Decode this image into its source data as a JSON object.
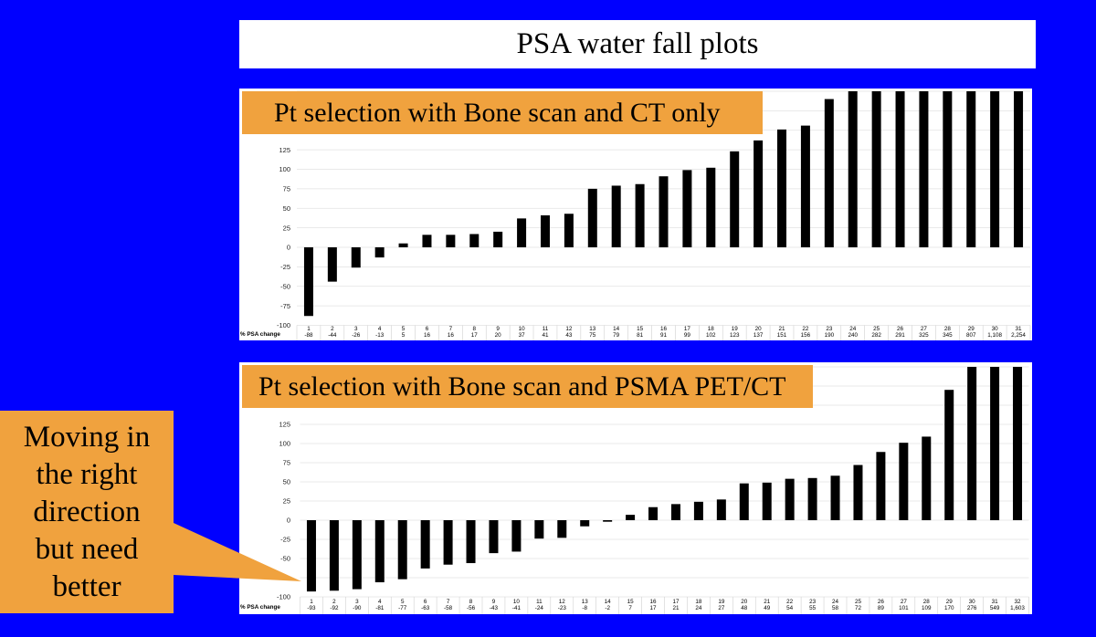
{
  "slide": {
    "title": "PSA water fall plots",
    "background_color": "#0000FF",
    "accent_color": "#F0A23E",
    "callout": {
      "lines": [
        "Moving in",
        "the right",
        "direction",
        "but need",
        "better"
      ]
    }
  },
  "chart_data": [
    {
      "type": "bar",
      "title": "Pt selection with Bone scan and CT only",
      "row_label": "% PSA change",
      "categories": [
        "1",
        "2",
        "3",
        "4",
        "5",
        "6",
        "7",
        "8",
        "9",
        "10",
        "11",
        "12",
        "13",
        "14",
        "15",
        "16",
        "17",
        "18",
        "19",
        "20",
        "21",
        "22",
        "23",
        "24",
        "25",
        "26",
        "27",
        "28",
        "29",
        "30",
        "31"
      ],
      "values": [
        -88,
        -44,
        -26,
        -13,
        5,
        16,
        16,
        17,
        20,
        37,
        41,
        43,
        75,
        79,
        81,
        91,
        99,
        102,
        123,
        137,
        151,
        156,
        190,
        240,
        282,
        291,
        325,
        345,
        807,
        1108,
        2254
      ],
      "value_labels": [
        "-88",
        "-44",
        "-26",
        "-13",
        "5",
        "16",
        "16",
        "17",
        "20",
        "37",
        "41",
        "43",
        "75",
        "79",
        "81",
        "91",
        "99",
        "102",
        "123",
        "137",
        "151",
        "156",
        "190",
        "240",
        "282",
        "291",
        "325",
        "345",
        "807",
        "1,108",
        "2,254"
      ],
      "ylim": [
        -100,
        200
      ],
      "ytick_labels": [
        "125",
        "100",
        "75",
        "50",
        "25",
        "0",
        "-25",
        "-50",
        "-75",
        "-100"
      ],
      "grid": true,
      "bar_color": "#000000"
    },
    {
      "type": "bar",
      "title": "Pt selection with Bone scan and PSMA PET/CT",
      "row_label": "% PSA change",
      "categories": [
        "1",
        "2",
        "3",
        "4",
        "5",
        "6",
        "7",
        "8",
        "9",
        "10",
        "11",
        "12",
        "13",
        "14",
        "15",
        "16",
        "17",
        "18",
        "19",
        "20",
        "21",
        "22",
        "23",
        "24",
        "25",
        "26",
        "27",
        "28",
        "29",
        "30",
        "31",
        "32"
      ],
      "values": [
        -93,
        -92,
        -90,
        -81,
        -77,
        -63,
        -58,
        -56,
        -43,
        -41,
        -24,
        -23,
        -8,
        -2,
        7,
        17,
        21,
        24,
        27,
        48,
        49,
        54,
        55,
        58,
        72,
        89,
        101,
        109,
        170,
        276,
        549,
        1603
      ],
      "value_labels": [
        "-93",
        "-92",
        "-90",
        "-81",
        "-77",
        "-63",
        "-58",
        "-56",
        "-43",
        "-41",
        "-24",
        "-23",
        "-8",
        "-2",
        "7",
        "17",
        "21",
        "24",
        "27",
        "48",
        "49",
        "54",
        "55",
        "58",
        "72",
        "89",
        "101",
        "109",
        "170",
        "276",
        "549",
        "1,603"
      ],
      "ylim": [
        -100,
        200
      ],
      "ytick_labels": [
        "125",
        "100",
        "75",
        "50",
        "25",
        "0",
        "-25",
        "-50",
        "-100"
      ],
      "grid": true,
      "bar_color": "#000000"
    }
  ]
}
